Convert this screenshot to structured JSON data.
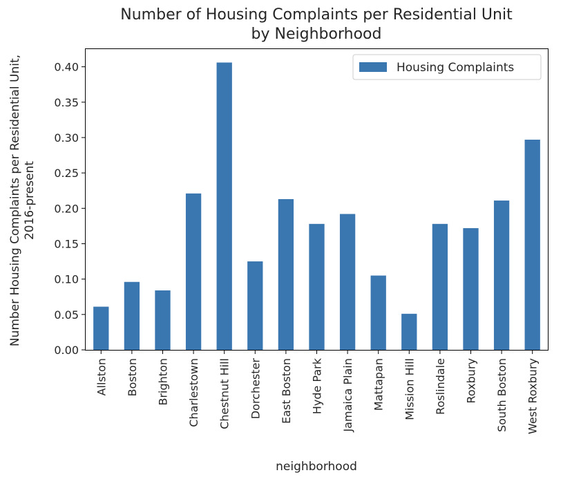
{
  "chart_data": {
    "type": "bar",
    "title_line1": "Number of Housing Complaints per Residential Unit",
    "title_line2": "by Neighborhood",
    "xlabel": "neighborhood",
    "ylabel_line1": "Number Housing Complaints per Residential Unit,",
    "ylabel_line2": "2016-present",
    "ylim": [
      0,
      0.425
    ],
    "yticks": [
      "0.00",
      "0.05",
      "0.10",
      "0.15",
      "0.20",
      "0.25",
      "0.30",
      "0.35",
      "0.40"
    ],
    "grid": false,
    "legend_position": "top-right",
    "bar_color": "#3a76b0",
    "categories": [
      "Allston",
      "Boston",
      "Brighton",
      "Charlestown",
      "Chestnut Hill",
      "Dorchester",
      "East Boston",
      "Hyde Park",
      "Jamaica Plain",
      "Mattapan",
      "Mission Hill",
      "Roslindale",
      "Roxbury",
      "South Boston",
      "West Roxbury"
    ],
    "series": [
      {
        "name": "Housing Complaints",
        "values": [
          0.061,
          0.096,
          0.084,
          0.221,
          0.406,
          0.125,
          0.213,
          0.178,
          0.192,
          0.105,
          0.051,
          0.178,
          0.172,
          0.211,
          0.297
        ]
      }
    ]
  }
}
